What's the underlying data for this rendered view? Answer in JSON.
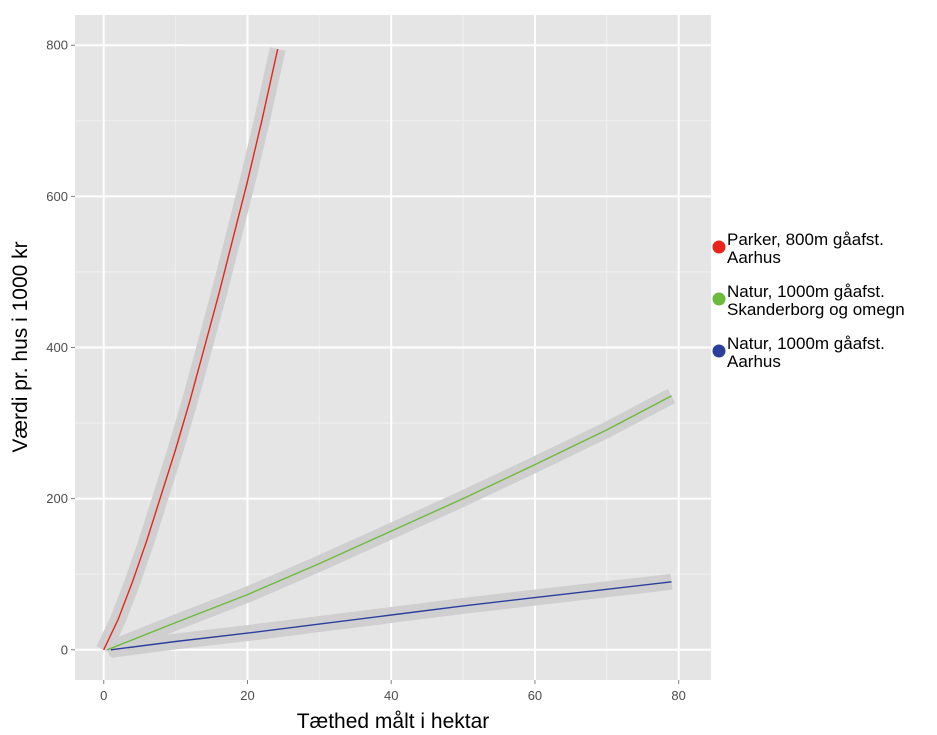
{
  "chart_data": {
    "type": "line",
    "xlabel": "Tæthed målt i hektar",
    "ylabel": "Værdi pr. hus i 1000 kr",
    "xlim": [
      -4,
      84.5
    ],
    "ylim": [
      -40,
      840
    ],
    "x_ticks": [
      0,
      20,
      40,
      60,
      80
    ],
    "y_ticks": [
      0,
      200,
      400,
      600,
      800
    ],
    "grid": true,
    "confidence_band": true,
    "legend_position": "right",
    "series": [
      {
        "name": "Parker, 800m gåafst. Aarhus",
        "color": "#e8241d",
        "x": [
          0,
          2,
          4,
          6,
          8,
          10,
          12,
          14,
          16,
          18,
          20,
          22,
          24.2
        ],
        "y": [
          0,
          40,
          90,
          145,
          205,
          265,
          330,
          400,
          470,
          545,
          620,
          700,
          795
        ]
      },
      {
        "name": "Natur, 1000m gåafst. Skanderborg og omegn",
        "color": "#6cbb3c",
        "x": [
          0.5,
          10,
          20,
          30,
          40,
          50,
          60,
          70,
          79
        ],
        "y": [
          0,
          36,
          73,
          114,
          157,
          200,
          245,
          291,
          336
        ]
      },
      {
        "name": "Natur, 1000m gåafst. Aarhus",
        "color": "#2a3f9e",
        "x": [
          1,
          10,
          20,
          30,
          40,
          50,
          60,
          70,
          79
        ],
        "y": [
          0,
          11,
          22,
          34,
          46,
          58,
          69,
          80,
          90
        ]
      }
    ],
    "legend": [
      {
        "line1": "Parker, 800m gåafst.",
        "line2": "Aarhus",
        "color": "#e8241d"
      },
      {
        "line1": "Natur, 1000m gåafst.",
        "line2": "Skanderborg og omegn",
        "color": "#6cbb3c"
      },
      {
        "line1": "Natur, 1000m gåafst.",
        "line2": "Aarhus",
        "color": "#2a3f9e"
      }
    ]
  },
  "colors": {
    "panel": "#e5e5e5",
    "gridMajor": "#ffffff",
    "gridMinor": "#f0f0f0",
    "band": "#cfcfcf"
  }
}
